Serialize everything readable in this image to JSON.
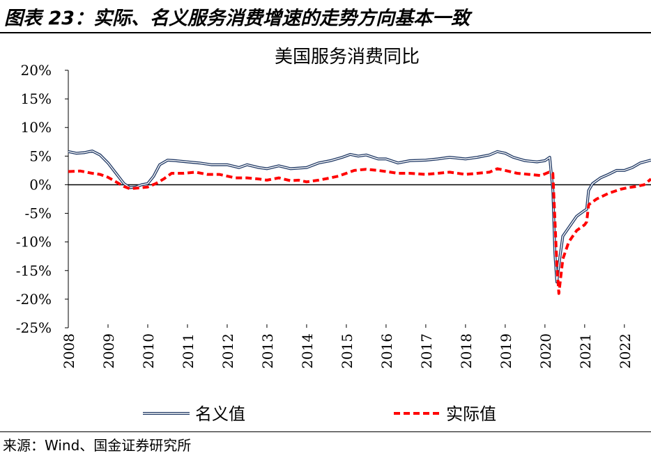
{
  "figure": {
    "title": "图表 23：实际、名义服务消费增速的走势方向基本一致",
    "source": "来源：Wind、国金证券研究所"
  },
  "chart_data": {
    "type": "line",
    "title": "美国服务消费同比",
    "xlabel": "",
    "ylabel": "",
    "ylim": [
      -25,
      20
    ],
    "y_ticks": [
      20,
      15,
      10,
      5,
      0,
      -5,
      -10,
      -15,
      -20,
      -25
    ],
    "y_tick_labels": [
      "20%",
      "15%",
      "10%",
      "5%",
      "0%",
      "-5%",
      "-10%",
      "-15%",
      "-20%",
      "-25%"
    ],
    "x_range": [
      2008.0,
      2022.67
    ],
    "x_ticks": [
      2008,
      2009,
      2010,
      2011,
      2012,
      2013,
      2014,
      2015,
      2016,
      2017,
      2018,
      2019,
      2020,
      2021,
      2022
    ],
    "x_tick_labels": [
      "2008",
      "2009",
      "2010",
      "2011",
      "2012",
      "2013",
      "2014",
      "2015",
      "2016",
      "2017",
      "2018",
      "2019",
      "2020",
      "2021",
      "2022"
    ],
    "grid": false,
    "legend_position": "bottom",
    "series": [
      {
        "name": "名义值",
        "color": "#1f3864",
        "style": "double-line",
        "x": [
          2008.0,
          2008.2,
          2008.4,
          2008.6,
          2008.8,
          2009.0,
          2009.2,
          2009.4,
          2009.55,
          2009.7,
          2009.85,
          2010.0,
          2010.15,
          2010.3,
          2010.5,
          2010.7,
          2011.0,
          2011.3,
          2011.6,
          2012.0,
          2012.3,
          2012.5,
          2012.8,
          2013.0,
          2013.3,
          2013.6,
          2014.0,
          2014.3,
          2014.6,
          2014.9,
          2015.1,
          2015.3,
          2015.5,
          2015.8,
          2016.0,
          2016.3,
          2016.6,
          2017.0,
          2017.3,
          2017.6,
          2018.0,
          2018.3,
          2018.6,
          2018.8,
          2019.0,
          2019.2,
          2019.5,
          2019.8,
          2020.0,
          2020.12,
          2020.2,
          2020.25,
          2020.3,
          2020.35,
          2020.45,
          2020.6,
          2020.8,
          2021.0,
          2021.05,
          2021.1,
          2021.2,
          2021.4,
          2021.6,
          2021.8,
          2022.0,
          2022.2,
          2022.4,
          2022.67
        ],
        "values": [
          5.8,
          5.5,
          5.6,
          5.9,
          5.2,
          3.8,
          2.0,
          0.2,
          -0.5,
          -0.4,
          0.0,
          0.2,
          1.5,
          3.5,
          4.3,
          4.2,
          4.0,
          3.8,
          3.5,
          3.5,
          3.0,
          3.5,
          3.0,
          2.8,
          3.3,
          2.8,
          3.0,
          3.8,
          4.2,
          4.8,
          5.3,
          5.0,
          5.2,
          4.5,
          4.5,
          3.8,
          4.2,
          4.3,
          4.5,
          4.8,
          4.5,
          4.8,
          5.2,
          5.8,
          5.5,
          4.8,
          4.2,
          4.0,
          4.2,
          4.8,
          -1.0,
          -12.0,
          -17.0,
          -14.0,
          -9.0,
          -7.5,
          -5.5,
          -4.5,
          -4.3,
          -1.0,
          0.2,
          1.2,
          1.8,
          2.5,
          2.5,
          3.0,
          3.8,
          4.3
        ]
      },
      {
        "name": "实际值",
        "color": "#ff0000",
        "style": "dashed",
        "x": [
          2008.0,
          2008.3,
          2008.6,
          2008.8,
          2009.0,
          2009.2,
          2009.4,
          2009.55,
          2009.7,
          2009.85,
          2010.0,
          2010.2,
          2010.4,
          2010.6,
          2010.9,
          2011.2,
          2011.5,
          2011.8,
          2012.0,
          2012.2,
          2012.5,
          2012.8,
          2013.0,
          2013.3,
          2013.6,
          2013.8,
          2014.0,
          2014.3,
          2014.6,
          2014.8,
          2015.0,
          2015.2,
          2015.5,
          2015.8,
          2016.0,
          2016.3,
          2016.6,
          2017.0,
          2017.3,
          2017.6,
          2018.0,
          2018.3,
          2018.6,
          2018.8,
          2019.0,
          2019.3,
          2019.6,
          2019.9,
          2020.1,
          2020.2,
          2020.25,
          2020.3,
          2020.35,
          2020.45,
          2020.6,
          2020.8,
          2021.0,
          2021.05,
          2021.1,
          2021.3,
          2021.6,
          2021.9,
          2022.1,
          2022.3,
          2022.5,
          2022.67
        ],
        "values": [
          2.3,
          2.4,
          2.0,
          1.8,
          1.3,
          0.5,
          -0.3,
          -0.7,
          -0.6,
          -0.5,
          -0.4,
          0.2,
          1.0,
          2.0,
          2.0,
          2.2,
          1.8,
          1.8,
          1.5,
          1.2,
          1.2,
          1.0,
          0.8,
          1.2,
          0.7,
          0.8,
          0.5,
          0.8,
          1.2,
          1.5,
          2.0,
          2.5,
          2.7,
          2.5,
          2.3,
          2.0,
          2.0,
          1.8,
          2.0,
          2.2,
          1.8,
          2.0,
          2.2,
          2.8,
          2.5,
          2.0,
          1.8,
          1.6,
          2.2,
          2.0,
          -6.0,
          -14.0,
          -19.0,
          -13.0,
          -10.0,
          -8.0,
          -7.0,
          -6.5,
          -3.5,
          -2.5,
          -1.5,
          -0.8,
          -0.5,
          -0.3,
          0.0,
          1.0
        ]
      }
    ]
  }
}
